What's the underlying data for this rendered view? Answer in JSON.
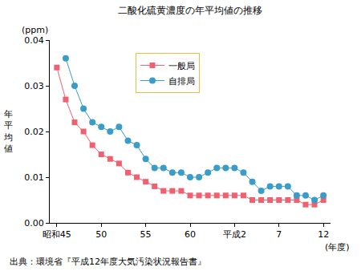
{
  "chart_data": {
    "type": "line",
    "title": "二酸化硫黄濃度の年平均値の推移",
    "y_unit": "(ppm)",
    "y_label": "年平均値",
    "x_unit": "(年度)",
    "source": "出典：環境省『平成12年度大気汚染状況報告書』",
    "categories": [
      "昭和45",
      null,
      null,
      null,
      null,
      "50",
      null,
      null,
      null,
      null,
      "55",
      null,
      null,
      null,
      null,
      "60",
      null,
      null,
      null,
      null,
      "平成2",
      null,
      null,
      null,
      null,
      "7",
      null,
      null,
      null,
      null,
      "12"
    ],
    "series": [
      {
        "name": "一般局",
        "color": "#f0606e",
        "marker": "square",
        "line_style": "solid",
        "values": [
          0.034,
          0.027,
          0.022,
          0.02,
          0.017,
          0.015,
          0.014,
          0.013,
          0.011,
          0.01,
          0.009,
          0.008,
          0.007,
          0.007,
          0.007,
          0.006,
          0.006,
          0.006,
          0.006,
          0.006,
          0.006,
          0.006,
          0.005,
          0.005,
          0.005,
          0.005,
          0.005,
          0.005,
          0.004,
          0.004,
          0.005
        ]
      },
      {
        "name": "自排局",
        "color": "#3a9cc8",
        "marker": "circle",
        "line_style": "solid",
        "values": [
          null,
          0.036,
          0.03,
          0.025,
          0.022,
          0.021,
          0.02,
          0.021,
          0.018,
          0.017,
          0.014,
          0.012,
          0.012,
          0.011,
          0.011,
          0.01,
          0.01,
          0.011,
          0.012,
          0.012,
          0.012,
          0.011,
          0.009,
          0.007,
          0.008,
          0.008,
          0.008,
          0.006,
          0.006,
          0.005,
          0.006
        ]
      }
    ],
    "ylim": [
      0,
      0.04
    ],
    "yticks": [
      {
        "value": 0,
        "label": "0.00"
      },
      0.01,
      0.02,
      0.03,
      0.04
    ],
    "grid": false,
    "legend": "top"
  }
}
